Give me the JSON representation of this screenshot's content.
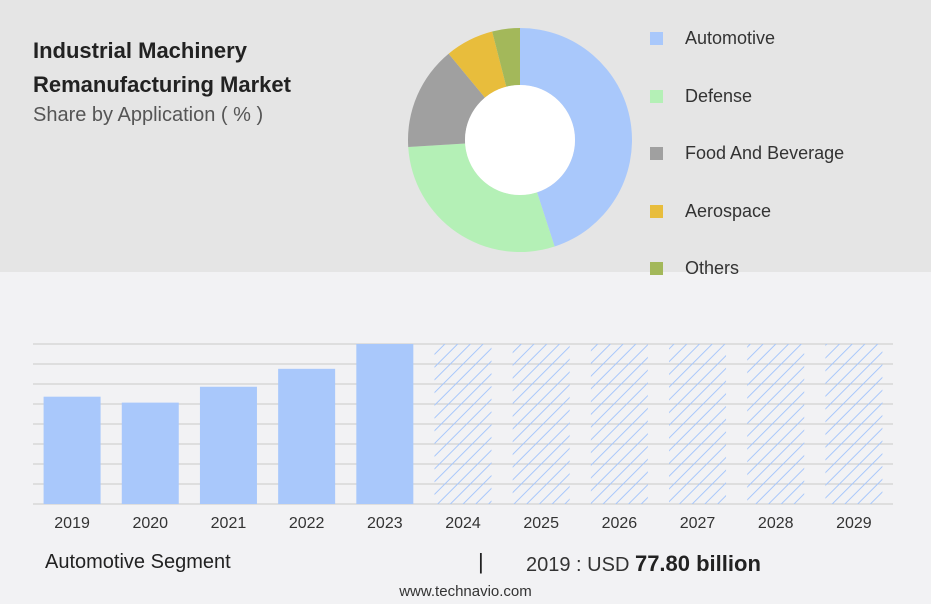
{
  "header": {
    "title": "Industrial Machinery Remanufacturing Market",
    "subtitle": "Share by Application ( % )"
  },
  "chart_data": [
    {
      "type": "pie",
      "donut": true,
      "title": "Share by Application ( % )",
      "categories": [
        "Automotive",
        "Defense",
        "Food And Beverage",
        "Aerospace",
        "Others"
      ],
      "values": [
        45,
        29,
        15,
        7,
        4
      ],
      "colors": [
        "#a9c8fb",
        "#b4f0b6",
        "#a0a0a0",
        "#e8bd3c",
        "#a3b85a"
      ],
      "legend_position": "right"
    },
    {
      "type": "bar",
      "categories": [
        "2019",
        "2020",
        "2021",
        "2022",
        "2023",
        "2024",
        "2025",
        "2026",
        "2027",
        "2028",
        "2029"
      ],
      "values": [
        77.8,
        73.5,
        85,
        98,
        116,
        116,
        116,
        116,
        116,
        116,
        116
      ],
      "forecast_from": "2024",
      "colors": {
        "actual": "#a9c8fb",
        "forecast_hatch": "#a9c8fb"
      },
      "ylim": [
        0,
        116
      ],
      "grid": true
    }
  ],
  "footer": {
    "segment_label": "Automotive Segment",
    "separator": "|",
    "year_text": "2019 : USD",
    "value_text": "77.80 billion",
    "url": "www.technavio.com"
  }
}
